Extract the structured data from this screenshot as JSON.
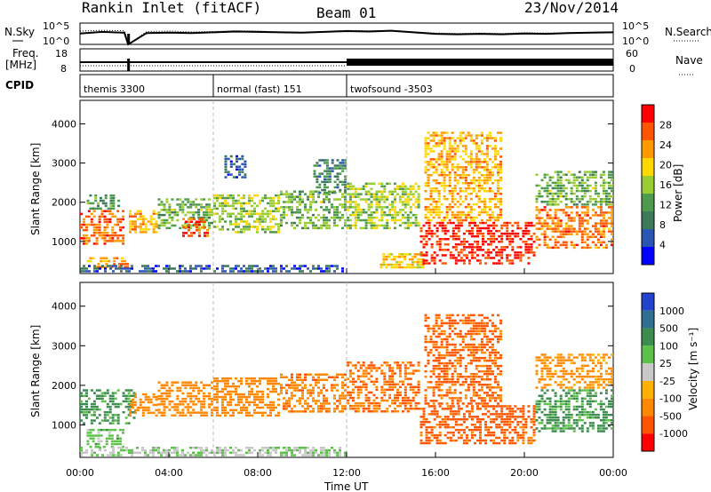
{
  "header": {
    "station": "Rankin Inlet (fitACF)",
    "beam": "Beam 01",
    "date": "23/Nov/2014"
  },
  "panel_labels": {
    "nsky": "N.Sky",
    "nsearch": "N.Search",
    "freq_line1": "Freq.",
    "freq_line2": "[MHz]",
    "nave": "Nave",
    "cpid": "CPID"
  },
  "colors": {
    "power_scale": [
      "#0000ff",
      "#2a55b3",
      "#3c7a5a",
      "#4e9a4e",
      "#9acd32",
      "#ffd700",
      "#ff9900",
      "#ff5500",
      "#ff0000"
    ],
    "velocity_scale": [
      "#2244cc",
      "#2f6f8f",
      "#3b8c4e",
      "#5ec14a",
      "#c8c8c8",
      "#ffb000",
      "#ff8800",
      "#ff5500",
      "#ff0000"
    ],
    "trace": "#000000",
    "dashed_divider": "#bbbbbb"
  },
  "chart_data": [
    {
      "type": "line",
      "name": "N.Sky / N.Search",
      "yticks": [
        "10^5",
        "10^0"
      ],
      "yticks_right": [
        "10^5",
        "10^0"
      ],
      "x": [
        "00:00",
        "01:00",
        "02:00",
        "02:10",
        "03:00",
        "04:00",
        "05:00",
        "06:00",
        "07:00",
        "08:00",
        "09:00",
        "10:00",
        "11:00",
        "12:00",
        "13:00",
        "14:00",
        "15:00",
        "16:00",
        "17:00",
        "18:00",
        "19:00",
        "20:00",
        "21:00",
        "22:00",
        "23:00",
        "24:00"
      ],
      "series": [
        {
          "name": "N.Sky",
          "values": [
            2.8,
            3.2,
            3.0,
            0.0,
            2.9,
            3.0,
            2.9,
            3.1,
            3.3,
            3.2,
            3.1,
            3.0,
            3.2,
            3.4,
            3.3,
            3.5,
            3.1,
            2.7,
            2.6,
            2.7,
            2.6,
            2.8,
            2.7,
            2.9,
            3.0,
            3.1
          ]
        },
        {
          "name": "N.Search",
          "values": [
            3.4,
            3.6,
            3.5,
            0.0,
            3.3,
            3.4,
            3.2,
            3.3,
            3.5,
            3.4,
            3.2,
            3.1,
            3.3,
            3.6,
            3.5,
            3.6,
            3.2,
            2.9,
            2.8,
            2.9,
            2.8,
            3.0,
            2.9,
            3.0,
            3.1,
            3.2
          ]
        }
      ]
    },
    {
      "type": "line",
      "name": "Freq. / Nave",
      "yticks": [
        "18",
        "8"
      ],
      "yticks_right": [
        "60",
        "0"
      ],
      "segments": [
        {
          "start": "00:00",
          "end": "12:00",
          "freq": 10.2,
          "nave_pattern": "dotted"
        },
        {
          "start": "12:00",
          "end": "24:00",
          "freq": 10.5,
          "nave_pattern": "dense"
        }
      ],
      "dropout": "02:10"
    },
    {
      "type": "table",
      "name": "CPID",
      "segments": [
        {
          "start": "00:00",
          "end": "06:00",
          "label": "themis 3300"
        },
        {
          "start": "06:00",
          "end": "12:00",
          "label": "normal (fast) 151"
        },
        {
          "start": "12:00",
          "end": "24:00",
          "label": "twofsound -3503"
        }
      ]
    },
    {
      "type": "heatmap",
      "name": "power",
      "ylabel": "Slant Range [km]",
      "yticks": [
        1000,
        2000,
        3000,
        4000
      ],
      "ylim": [
        180,
        4600
      ],
      "colorbar_label": "Power [dB]",
      "colorbar_ticks": [
        4,
        8,
        12,
        16,
        20,
        24,
        28
      ],
      "clim": [
        0,
        32
      ],
      "blobs": [
        {
          "t0": 0.0,
          "t1": 2.0,
          "r0": 900,
          "r1": 1800,
          "value": 26
        },
        {
          "t0": 0.3,
          "t1": 1.8,
          "r0": 1800,
          "r1": 2200,
          "value": 12
        },
        {
          "t0": 0.3,
          "t1": 2.2,
          "r0": 300,
          "r1": 600,
          "value": 24
        },
        {
          "t0": 2.2,
          "t1": 3.5,
          "r0": 1200,
          "r1": 1800,
          "value": 22
        },
        {
          "t0": 3.5,
          "t1": 6.0,
          "r0": 1300,
          "r1": 2100,
          "value": 14
        },
        {
          "t0": 4.6,
          "t1": 5.8,
          "r0": 1100,
          "r1": 1600,
          "value": 26
        },
        {
          "t0": 6.0,
          "t1": 9.0,
          "r0": 1200,
          "r1": 2200,
          "value": 16
        },
        {
          "t0": 6.5,
          "t1": 7.5,
          "r0": 2600,
          "r1": 3200,
          "value": 6
        },
        {
          "t0": 9.0,
          "t1": 12.0,
          "r0": 1300,
          "r1": 2300,
          "value": 14
        },
        {
          "t0": 10.5,
          "t1": 12.0,
          "r0": 2200,
          "r1": 3100,
          "value": 10
        },
        {
          "t0": 12.0,
          "t1": 15.3,
          "r0": 1300,
          "r1": 2500,
          "value": 16
        },
        {
          "t0": 13.5,
          "t1": 15.5,
          "r0": 300,
          "r1": 700,
          "value": 20
        },
        {
          "t0": 15.3,
          "t1": 20.5,
          "r0": 400,
          "r1": 1500,
          "value": 29
        },
        {
          "t0": 15.5,
          "t1": 19.0,
          "r0": 1500,
          "r1": 3800,
          "value": 22
        },
        {
          "t0": 20.5,
          "t1": 24.0,
          "r0": 800,
          "r1": 1900,
          "value": 25
        },
        {
          "t0": 20.5,
          "t1": 24.0,
          "r0": 1900,
          "r1": 2800,
          "value": 14
        },
        {
          "t0": 0.0,
          "t1": 12.0,
          "r0": 200,
          "r1": 400,
          "value": 6
        }
      ]
    },
    {
      "type": "heatmap",
      "name": "velocity",
      "ylabel": "Slant Range [km]",
      "xlabel": "Time UT",
      "xticks": [
        "00:00",
        "04:00",
        "08:00",
        "12:00",
        "16:00",
        "20:00",
        "00:00"
      ],
      "yticks": [
        1000,
        2000,
        3000,
        4000
      ],
      "ylim": [
        180,
        4600
      ],
      "colorbar_label": "Velocity [m s⁻¹]",
      "colorbar_ticks": [
        "1000",
        "500",
        "100",
        "25",
        "-25",
        "-100",
        "-500",
        "-1000"
      ],
      "blobs": [
        {
          "t0": 0.0,
          "t1": 2.5,
          "r0": 1000,
          "r1": 1900,
          "value": 150
        },
        {
          "t0": 0.3,
          "t1": 2.0,
          "r0": 400,
          "r1": 900,
          "value": 60
        },
        {
          "t0": 2.2,
          "t1": 3.5,
          "r0": 1200,
          "r1": 1800,
          "value": -200
        },
        {
          "t0": 3.5,
          "t1": 6.0,
          "r0": 1200,
          "r1": 2100,
          "value": -300
        },
        {
          "t0": 6.0,
          "t1": 9.0,
          "r0": 1200,
          "r1": 2200,
          "value": -250
        },
        {
          "t0": 9.0,
          "t1": 12.0,
          "r0": 1300,
          "r1": 2300,
          "value": -400
        },
        {
          "t0": 12.0,
          "t1": 15.3,
          "r0": 1300,
          "r1": 2600,
          "value": -500
        },
        {
          "t0": 15.5,
          "t1": 19.0,
          "r0": 1500,
          "r1": 3800,
          "value": -600
        },
        {
          "t0": 15.3,
          "t1": 20.5,
          "r0": 500,
          "r1": 1500,
          "value": -700
        },
        {
          "t0": 20.5,
          "t1": 24.0,
          "r0": 800,
          "r1": 1900,
          "value": 120
        },
        {
          "t0": 20.5,
          "t1": 24.0,
          "r0": 1900,
          "r1": 2800,
          "value": -150
        },
        {
          "t0": 0.0,
          "t1": 12.0,
          "r0": 200,
          "r1": 450,
          "value": 20
        }
      ]
    }
  ]
}
